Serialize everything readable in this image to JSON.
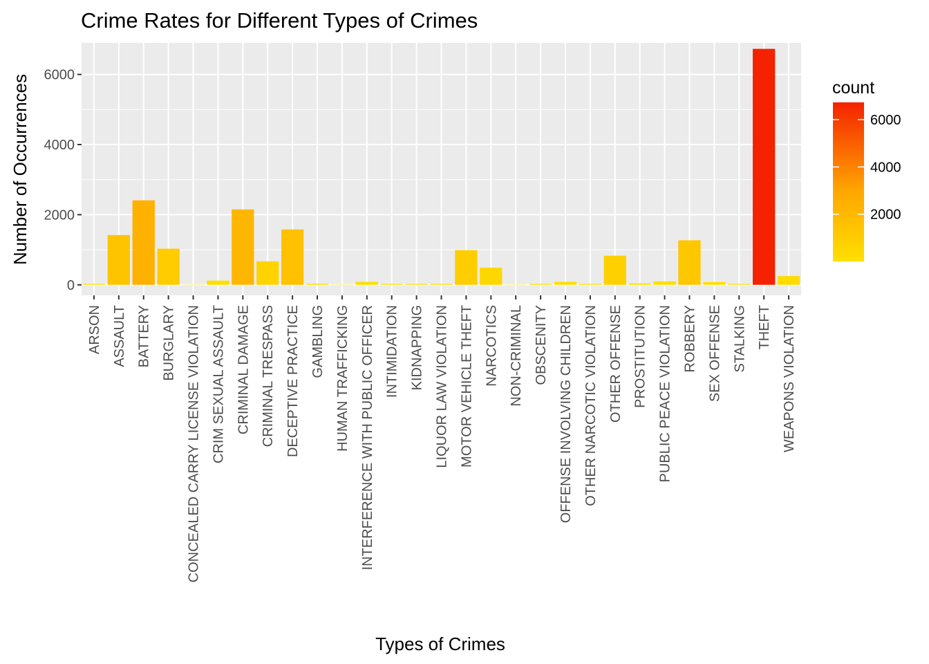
{
  "chart_data": {
    "type": "bar",
    "title": "Crime Rates for Different Types of Crimes",
    "xlabel": "Types of Crimes",
    "ylabel": "Number of Occurrences",
    "ylim": [
      -300,
      6900
    ],
    "yticks": [
      0,
      2000,
      4000,
      6000
    ],
    "grid": true,
    "categories": [
      "ARSON",
      "ASSAULT",
      "BATTERY",
      "BURGLARY",
      "CONCEALED CARRY LICENSE VIOLATION",
      "CRIM SEXUAL ASSAULT",
      "CRIMINAL DAMAGE",
      "CRIMINAL TRESPASS",
      "DECEPTIVE PRACTICE",
      "GAMBLING",
      "HUMAN TRAFFICKING",
      "INTERFERENCE WITH PUBLIC OFFICER",
      "INTIMIDATION",
      "KIDNAPPING",
      "LIQUOR LAW VIOLATION",
      "MOTOR VEHICLE THEFT",
      "NARCOTICS",
      "NON-CRIMINAL",
      "OBSCENITY",
      "OFFENSE INVOLVING CHILDREN",
      "OTHER NARCOTIC VIOLATION",
      "OTHER OFFENSE",
      "PROSTITUTION",
      "PUBLIC PEACE VIOLATION",
      "ROBBERY",
      "SEX OFFENSE",
      "STALKING",
      "THEFT",
      "WEAPONS VIOLATION"
    ],
    "values": [
      25,
      1420,
      2410,
      1030,
      3,
      120,
      2150,
      670,
      1580,
      30,
      3,
      85,
      25,
      25,
      25,
      990,
      490,
      3,
      25,
      85,
      25,
      830,
      40,
      100,
      1270,
      80,
      25,
      6730,
      250
    ],
    "legend": {
      "title": "count",
      "position": "right",
      "ticks": [
        2000,
        4000,
        6000
      ],
      "range": [
        3,
        6730
      ],
      "color_low": "#FFE000",
      "color_mid": "#FFA500",
      "color_high": "#F52200"
    },
    "colors": {
      "panel_background": "#EBEBEB",
      "grid_major": "#FFFFFF"
    }
  }
}
